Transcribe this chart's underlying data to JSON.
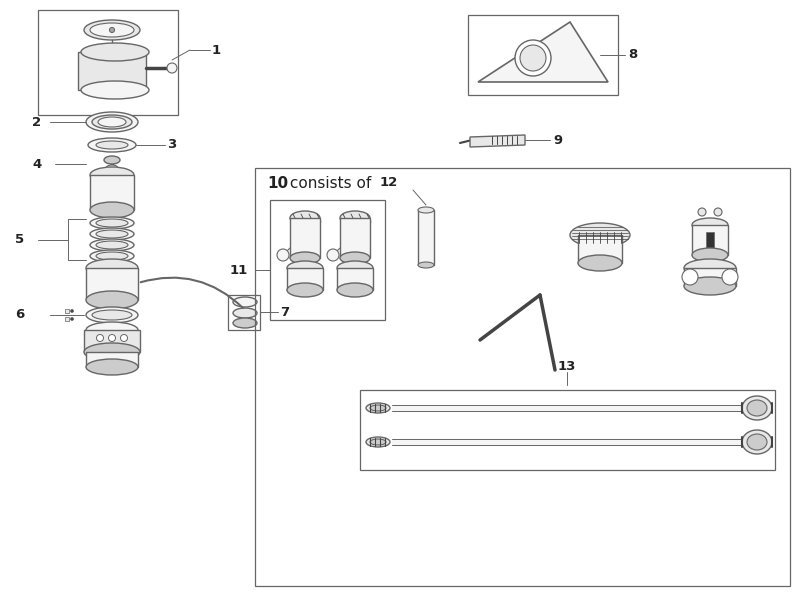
{
  "bg_color": "#ffffff",
  "lc": "#666666",
  "lc_dark": "#444444",
  "lblc": "#222222",
  "fc_light": "#f5f5f5",
  "fc_mid": "#e8e8e8",
  "fc_dark": "#cccccc",
  "fc_black": "#333333"
}
